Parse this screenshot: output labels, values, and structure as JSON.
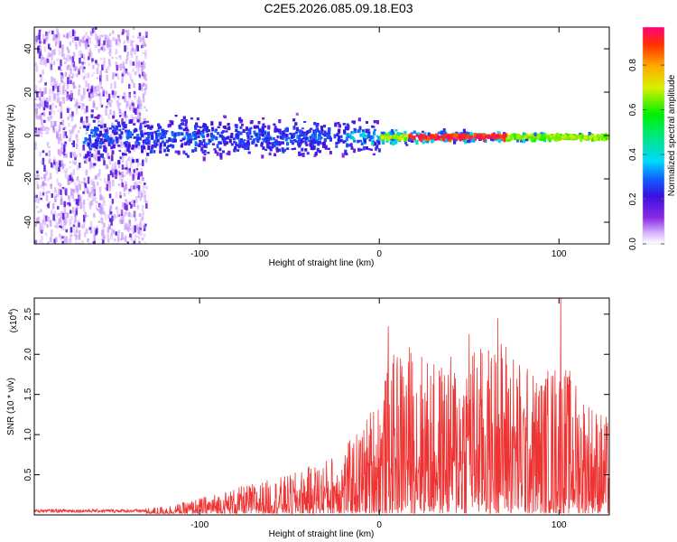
{
  "title": "C2E5.2026.085.09.18.E03",
  "chart_data": [
    {
      "type": "heatmap",
      "name": "spectrogram",
      "xlabel": "Height of straight line (km)",
      "ylabel": "Frequency (Hz)",
      "xlim": [
        -192,
        128
      ],
      "ylim": [
        -50,
        50
      ],
      "x_ticks": [
        -100,
        0,
        100
      ],
      "y_ticks": [
        40,
        20,
        0,
        -20,
        -40
      ],
      "colorbar": {
        "label": "Normalized spectral amplitude",
        "range": [
          0.0,
          0.97
        ],
        "ticks": [
          0.0,
          0.2,
          0.4,
          0.6,
          0.8
        ]
      },
      "description_of_values": "Noise-only scatter below -130 km; signal band centered near 0 Hz narrowing with height; strongest amplitude (~0.9) near 0 Hz between 20 and 65 km."
    },
    {
      "type": "line",
      "name": "snr",
      "xlabel": "Height of straight line (km)",
      "ylabel": "SNR (10 * v/v)",
      "y_multiplier_label": "(x10",
      "y_multiplier_exp": "4",
      "xlim": [
        -192,
        128
      ],
      "ylim": [
        0,
        2.7
      ],
      "x_ticks": [
        -100,
        0,
        100
      ],
      "y_ticks": [
        0.5,
        1.0,
        1.5,
        2.0,
        2.5
      ],
      "y_tick_labels": [
        "0.5",
        "1.0",
        "1.5",
        "2.0",
        "2.5"
      ],
      "color": "#ee3333",
      "envelope": {
        "x": [
          -192,
          -150,
          -130,
          -110,
          -90,
          -70,
          -50,
          -30,
          -20,
          -10,
          0,
          10,
          20,
          30,
          40,
          50,
          60,
          70,
          80,
          90,
          100,
          110,
          120,
          128
        ],
        "y": [
          0.05,
          0.06,
          0.08,
          0.15,
          0.28,
          0.4,
          0.5,
          0.7,
          0.85,
          1.1,
          1.6,
          2.1,
          2.2,
          1.9,
          2.0,
          2.2,
          2.1,
          2.3,
          1.9,
          1.8,
          2.0,
          1.7,
          1.4,
          1.2
        ]
      },
      "peaks": [
        {
          "x": 5,
          "y": 2.35
        },
        {
          "x": 50,
          "y": 2.25
        },
        {
          "x": 66,
          "y": 2.45
        },
        {
          "x": 101,
          "y": 2.7
        }
      ]
    }
  ]
}
